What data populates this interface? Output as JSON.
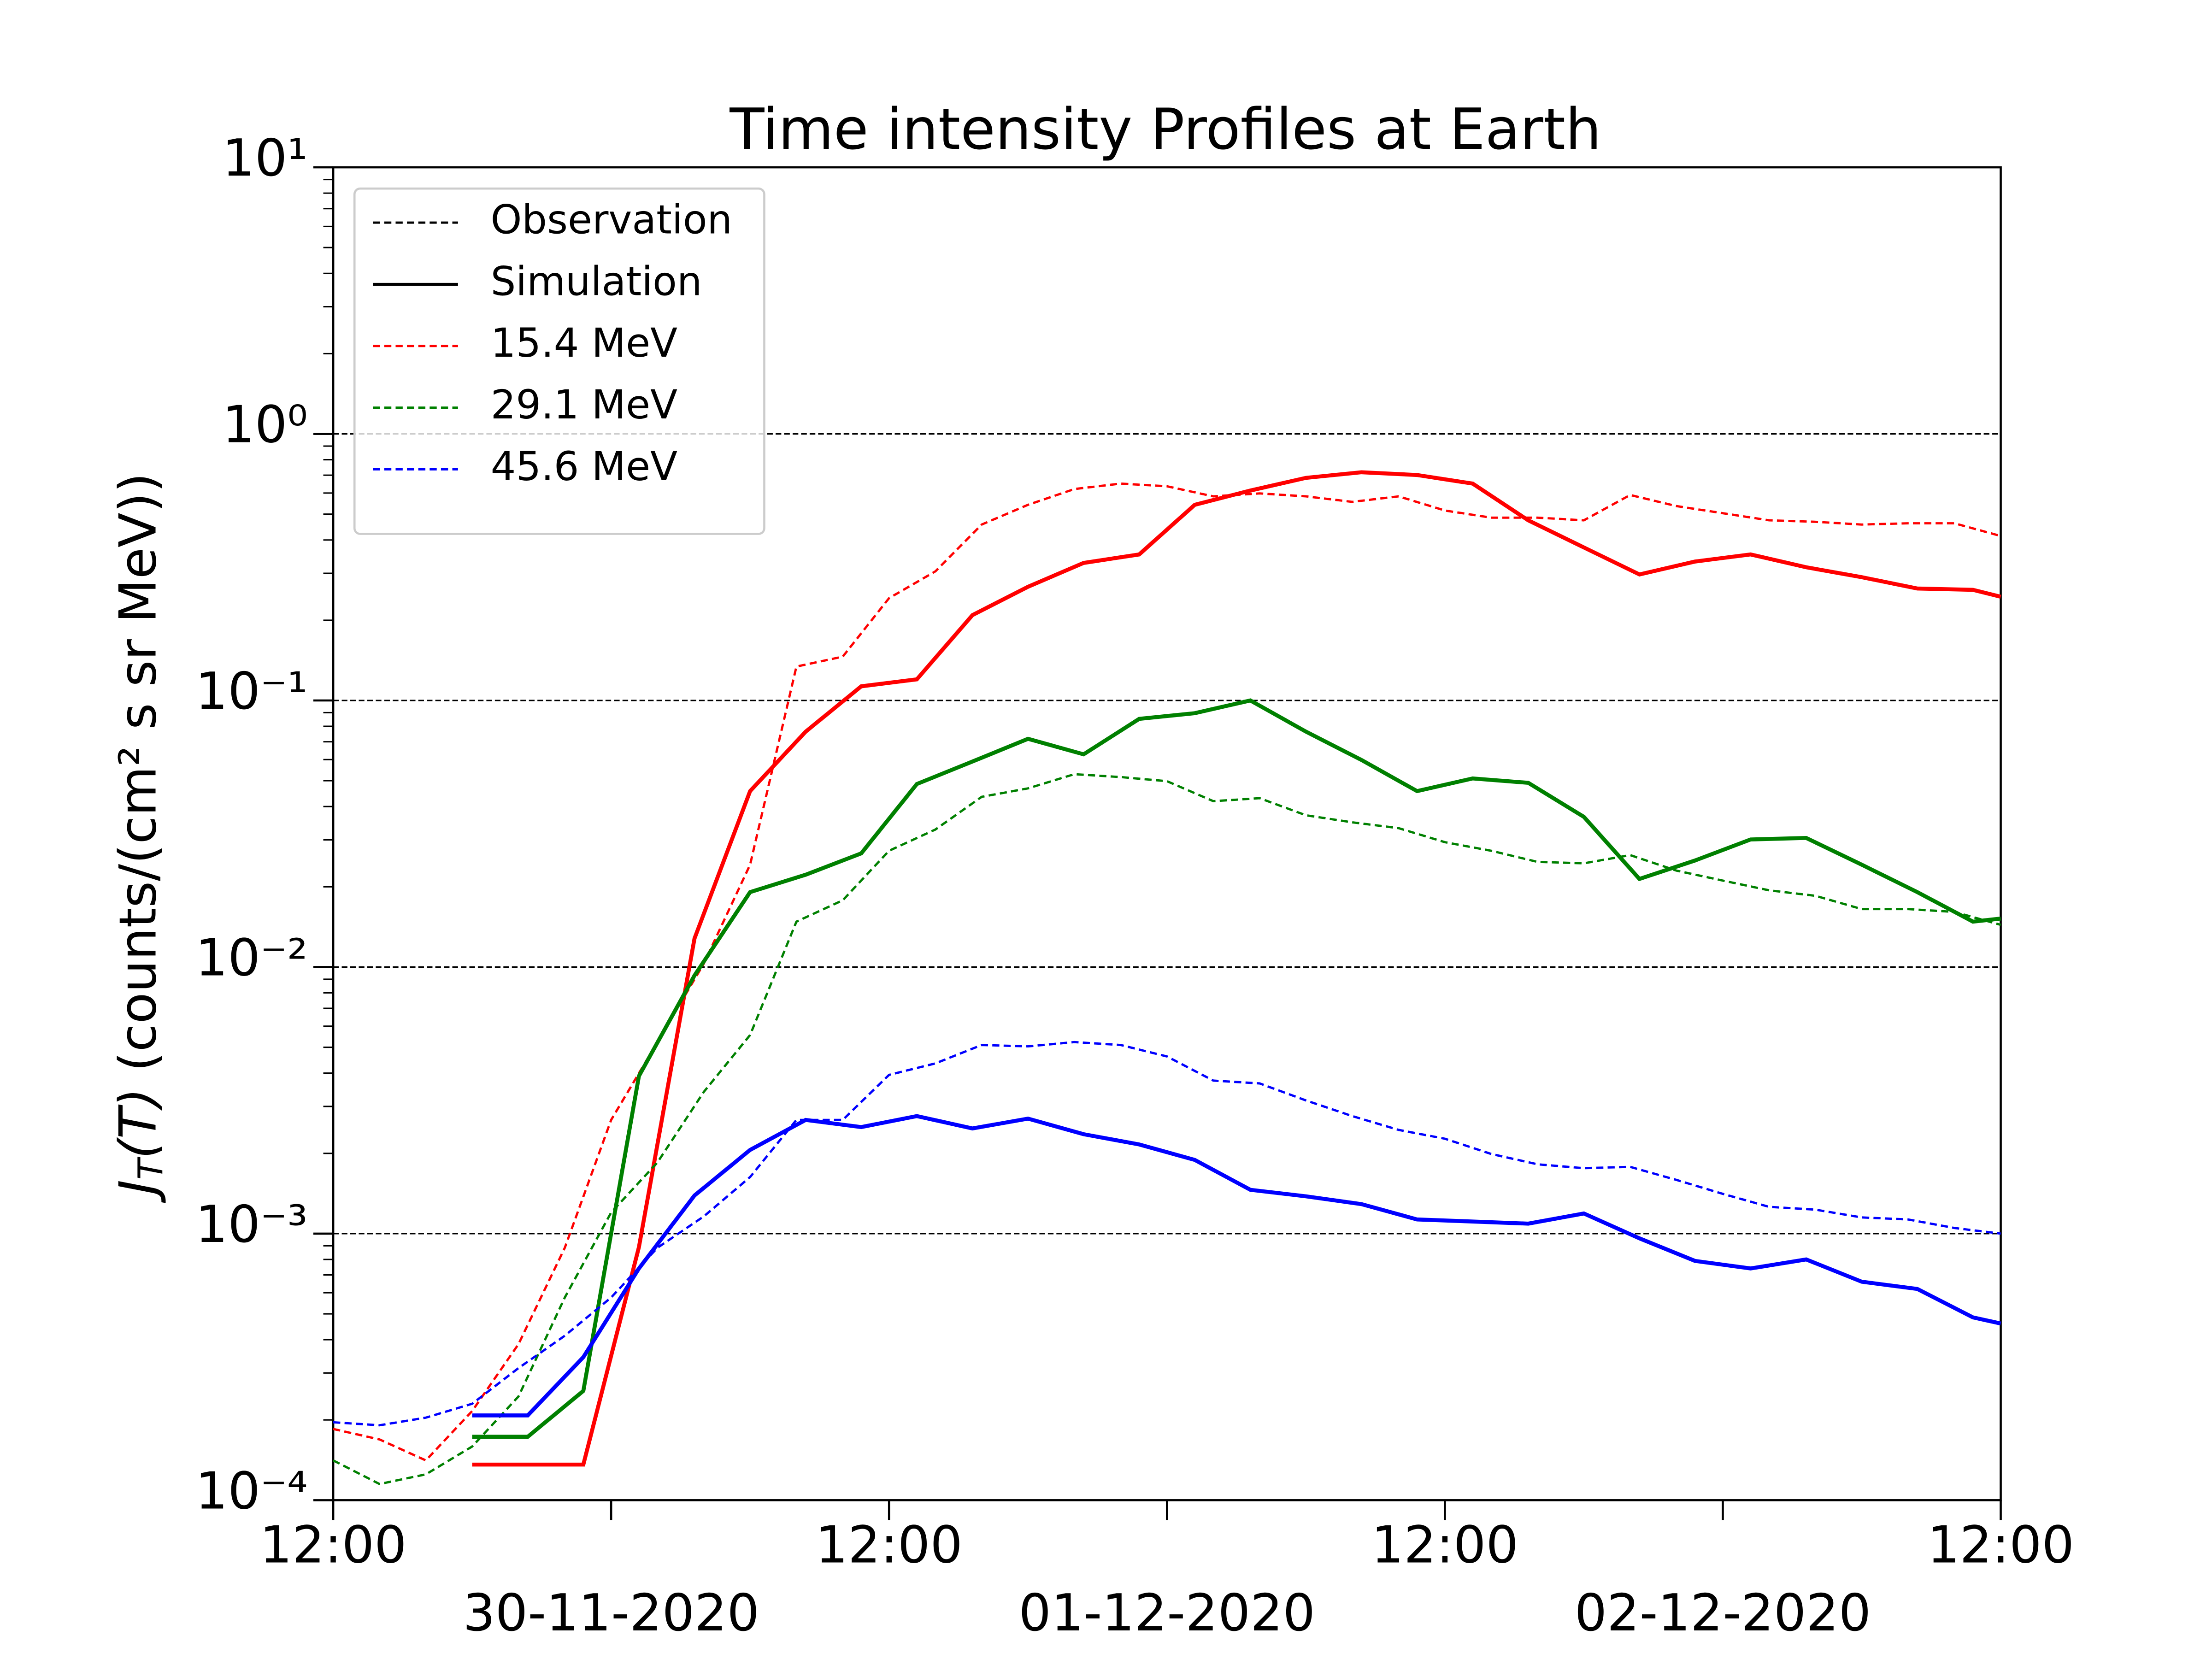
{
  "chart_data": {
    "type": "line",
    "title": "Time intensity Profiles at Earth",
    "ylabel": {
      "symbol": "J",
      "subscript": "T",
      "argument": "(T)",
      "units": " (counts/(cm² s sr MeV))"
    },
    "log_y": true,
    "grid": true,
    "legend": "upper left",
    "xlim": [
      "2020-11-29 12:00",
      "2020-12-02 12:00"
    ],
    "xticks": [
      {
        "value": "2020-11-29 12:00",
        "label": "12:00"
      },
      {
        "value": "2020-11-30 00:00",
        "label": "30-11-2020"
      },
      {
        "value": "2020-11-30 12:00",
        "label": "12:00"
      },
      {
        "value": "2020-12-01 00:00",
        "label": "01-12-2020"
      },
      {
        "value": "2020-12-01 12:00",
        "label": "12:00"
      },
      {
        "value": "2020-12-02 00:00",
        "label": "02-12-2020"
      },
      {
        "value": "2020-12-02 12:00",
        "label": "12:00"
      }
    ],
    "ylim": [
      0.0001,
      10
    ],
    "yticks": [
      {
        "value": 0.0001,
        "label": "10⁻⁴"
      },
      {
        "value": 0.001,
        "label": "10⁻³"
      },
      {
        "value": 0.01,
        "label": "10⁻²"
      },
      {
        "value": 0.1,
        "label": "10⁻¹"
      },
      {
        "value": 1,
        "label": "10⁰"
      },
      {
        "value": 10,
        "label": "10¹"
      }
    ],
    "legend_styles": [
      {
        "label": "Observation",
        "style": "dashed"
      },
      {
        "label": "Simulation",
        "style": "solid"
      }
    ],
    "x_observation": [
      "2020-11-29 12:00",
      "2020-11-29 14:00",
      "2020-11-29 16:00",
      "2020-11-29 18:00",
      "2020-11-29 20:00",
      "2020-11-29 22:00",
      "2020-11-30 00:00",
      "2020-11-30 02:00",
      "2020-11-30 04:00",
      "2020-11-30 06:00",
      "2020-11-30 08:00",
      "2020-11-30 10:00",
      "2020-11-30 12:00",
      "2020-11-30 14:00",
      "2020-11-30 16:00",
      "2020-11-30 18:00",
      "2020-11-30 20:00",
      "2020-11-30 22:00",
      "2020-12-01 00:00",
      "2020-12-01 02:00",
      "2020-12-01 04:00",
      "2020-12-01 06:00",
      "2020-12-01 08:00",
      "2020-12-01 10:00",
      "2020-12-01 12:00",
      "2020-12-01 14:00",
      "2020-12-01 16:00",
      "2020-12-01 18:00",
      "2020-12-01 20:00",
      "2020-12-01 22:00",
      "2020-12-02 00:00",
      "2020-12-02 02:00",
      "2020-12-02 04:00",
      "2020-12-02 06:00",
      "2020-12-02 08:00",
      "2020-12-02 10:00",
      "2020-12-02 12:00"
    ],
    "x_simulation": [
      "2020-11-29 18:00",
      "2020-11-29 20:24",
      "2020-11-29 22:48",
      "2020-11-30 01:12",
      "2020-11-30 03:36",
      "2020-11-30 06:00",
      "2020-11-30 08:24",
      "2020-11-30 10:48",
      "2020-11-30 13:12",
      "2020-11-30 15:36",
      "2020-11-30 18:00",
      "2020-11-30 20:24",
      "2020-11-30 22:48",
      "2020-12-01 01:12",
      "2020-12-01 03:36",
      "2020-12-01 06:00",
      "2020-12-01 08:24",
      "2020-12-01 10:48",
      "2020-12-01 13:12",
      "2020-12-01 15:36",
      "2020-12-01 18:00",
      "2020-12-01 20:24",
      "2020-12-01 22:48",
      "2020-12-02 01:12",
      "2020-12-02 03:36",
      "2020-12-02 06:00",
      "2020-12-02 08:24",
      "2020-12-02 10:48",
      "2020-12-02 12:00"
    ],
    "channels": [
      {
        "name": "15.4 MeV",
        "color": "#ff0000",
        "observation": [
          0.000185,
          0.000169,
          0.000141,
          0.000216,
          0.000385,
          0.000885,
          0.00267,
          0.00523,
          0.0103,
          0.0242,
          0.134,
          0.146,
          0.242,
          0.305,
          0.457,
          0.542,
          0.621,
          0.651,
          0.636,
          0.583,
          0.598,
          0.583,
          0.556,
          0.583,
          0.516,
          0.485,
          0.485,
          0.474,
          0.59,
          0.536,
          0.504,
          0.474,
          0.468,
          0.457,
          0.462,
          0.462,
          0.414
        ],
        "simulation": [
          0.000136,
          0.000136,
          0.000136,
          0.00089,
          0.0128,
          0.0457,
          0.0764,
          0.113,
          0.12,
          0.209,
          0.267,
          0.328,
          0.353,
          0.542,
          0.613,
          0.684,
          0.718,
          0.701,
          0.651,
          0.474,
          0.375,
          0.297,
          0.332,
          0.353,
          0.316,
          0.29,
          0.263,
          0.26,
          0.245
        ]
      },
      {
        "name": "29.1 MeV",
        "color": "#008000",
        "observation": [
          0.000141,
          0.000115,
          0.000125,
          0.000159,
          0.000245,
          0.000576,
          0.0012,
          0.00185,
          0.0034,
          0.00556,
          0.0148,
          0.0178,
          0.0273,
          0.0328,
          0.0435,
          0.0468,
          0.0529,
          0.0516,
          0.0498,
          0.0419,
          0.043,
          0.0371,
          0.0349,
          0.0332,
          0.0294,
          0.0273,
          0.0248,
          0.0245,
          0.0263,
          0.023,
          0.0211,
          0.0194,
          0.0185,
          0.0165,
          0.0165,
          0.0161,
          0.0144
        ],
        "simulation": [
          0.000173,
          0.000173,
          0.000257,
          0.0039,
          0.0093,
          0.0191,
          0.0222,
          0.0267,
          0.0486,
          0.059,
          0.0718,
          0.0628,
          0.0853,
          0.0896,
          0.1,
          0.0764,
          0.0598,
          0.0457,
          0.051,
          0.0491,
          0.0366,
          0.0214,
          0.0251,
          0.0301,
          0.0305,
          0.0242,
          0.0191,
          0.0148,
          0.0152
        ]
      },
      {
        "name": "45.6 MeV",
        "color": "#0000ff",
        "observation": [
          0.000196,
          0.000191,
          0.000204,
          0.00023,
          0.000313,
          0.000414,
          0.000576,
          0.000885,
          0.00116,
          0.00163,
          0.00267,
          0.00267,
          0.00394,
          0.00435,
          0.0051,
          0.00504,
          0.00523,
          0.0051,
          0.00462,
          0.00375,
          0.00366,
          0.00316,
          0.00276,
          0.00245,
          0.00227,
          0.00199,
          0.00182,
          0.00176,
          0.00178,
          0.00159,
          0.00141,
          0.00126,
          0.00123,
          0.00115,
          0.00113,
          0.00105,
          0.001
        ],
        "simulation": [
          0.000208,
          0.000208,
          0.000344,
          0.00074,
          0.00139,
          0.00206,
          0.00267,
          0.00251,
          0.00276,
          0.00248,
          0.0027,
          0.00236,
          0.00216,
          0.00189,
          0.00146,
          0.00138,
          0.00129,
          0.00113,
          0.00111,
          0.00109,
          0.00119,
          0.00096,
          0.00079,
          0.00074,
          0.0008,
          0.00066,
          0.00062,
          0.000485,
          0.00046
        ]
      }
    ]
  }
}
